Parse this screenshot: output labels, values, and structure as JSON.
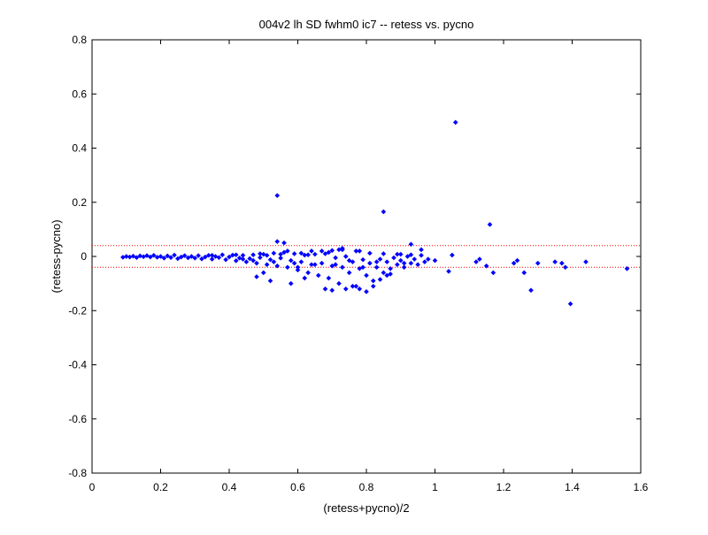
{
  "chart_data": {
    "type": "scatter",
    "title": "004v2 lh SD fwhm0 ic7 -- retess vs. pycno",
    "xlabel": "(retess+pycno)/2",
    "ylabel": "(retess-pycno)",
    "xlim": [
      0,
      1.6
    ],
    "ylim": [
      -0.8,
      0.8
    ],
    "xticks": [
      "0",
      "0.2",
      "0.4",
      "0.6",
      "0.8",
      "1",
      "1.2",
      "1.4",
      "1.6"
    ],
    "yticks": [
      "-0.8",
      "-0.6",
      "-0.4",
      "-0.2",
      "0",
      "0.2",
      "0.4",
      "0.6",
      "0.8"
    ],
    "grid": false,
    "marker_color": "#0000ff",
    "reference_line_color": "#ff0000",
    "reference_lines_y": [
      0.04,
      -0.04
    ],
    "series": [
      {
        "points": [
          [
            0.09,
            -0.003
          ],
          [
            0.1,
            0.0
          ],
          [
            0.11,
            -0.002
          ],
          [
            0.12,
            0.001
          ],
          [
            0.13,
            -0.004
          ],
          [
            0.14,
            0.002
          ],
          [
            0.15,
            -0.001
          ],
          [
            0.16,
            0.003
          ],
          [
            0.17,
            -0.002
          ],
          [
            0.18,
            0.004
          ],
          [
            0.19,
            -0.003
          ],
          [
            0.2,
            0.0
          ],
          [
            0.21,
            -0.006
          ],
          [
            0.22,
            0.002
          ],
          [
            0.23,
            -0.004
          ],
          [
            0.24,
            0.005
          ],
          [
            0.25,
            -0.008
          ],
          [
            0.26,
            -0.002
          ],
          [
            0.27,
            0.003
          ],
          [
            0.28,
            -0.005
          ],
          [
            0.29,
            0.0
          ],
          [
            0.3,
            -0.006
          ],
          [
            0.31,
            0.003
          ],
          [
            0.32,
            -0.009
          ],
          [
            0.33,
            -0.002
          ],
          [
            0.34,
            0.004
          ],
          [
            0.35,
            -0.01
          ],
          [
            0.36,
            0.0
          ],
          [
            0.37,
            -0.004
          ],
          [
            0.38,
            0.006
          ],
          [
            0.39,
            -0.012
          ],
          [
            0.4,
            -0.002
          ],
          [
            0.41,
            0.005
          ],
          [
            0.42,
            -0.016
          ],
          [
            0.43,
            -0.006
          ],
          [
            0.44,
            0.004
          ],
          [
            0.45,
            -0.02
          ],
          [
            0.46,
            -0.008
          ],
          [
            0.47,
            0.006
          ],
          [
            0.48,
            -0.025
          ],
          [
            0.49,
            -0.004
          ],
          [
            0.5,
            0.008
          ],
          [
            0.51,
            -0.03
          ],
          [
            0.52,
            -0.012
          ],
          [
            0.53,
            0.012
          ],
          [
            0.54,
            -0.035
          ],
          [
            0.55,
            -0.006
          ],
          [
            0.56,
            0.015
          ],
          [
            0.57,
            -0.04
          ],
          [
            0.58,
            -0.015
          ],
          [
            0.59,
            0.01
          ],
          [
            0.6,
            -0.05
          ],
          [
            0.61,
            -0.02
          ],
          [
            0.62,
            0.005
          ],
          [
            0.63,
            -0.06
          ],
          [
            0.64,
            -0.03
          ],
          [
            0.65,
            0.008
          ],
          [
            0.66,
            -0.07
          ],
          [
            0.67,
            -0.025
          ],
          [
            0.68,
            0.01
          ],
          [
            0.69,
            -0.08
          ],
          [
            0.7,
            -0.035
          ],
          [
            0.71,
            -0.005
          ],
          [
            0.72,
            -0.1
          ],
          [
            0.73,
            -0.04
          ],
          [
            0.74,
            0.0
          ],
          [
            0.75,
            -0.06
          ],
          [
            0.76,
            -0.02
          ],
          [
            0.77,
            -0.11
          ],
          [
            0.78,
            -0.045
          ],
          [
            0.79,
            -0.012
          ],
          [
            0.8,
            -0.07
          ],
          [
            0.81,
            -0.025
          ],
          [
            0.82,
            -0.09
          ],
          [
            0.83,
            -0.04
          ],
          [
            0.84,
            -0.01
          ],
          [
            0.85,
            -0.06
          ],
          [
            0.86,
            -0.02
          ],
          [
            0.87,
            -0.045
          ],
          [
            0.88,
            -0.005
          ],
          [
            0.89,
            -0.03
          ],
          [
            0.9,
            -0.015
          ],
          [
            0.91,
            -0.04
          ],
          [
            0.92,
            0.0
          ],
          [
            0.93,
            -0.025
          ],
          [
            0.94,
            -0.01
          ],
          [
            0.95,
            -0.03
          ],
          [
            0.96,
            0.004
          ],
          [
            0.97,
            -0.02
          ],
          [
            0.35,
            0.004
          ],
          [
            0.42,
            0.006
          ],
          [
            0.44,
            -0.01
          ],
          [
            0.47,
            -0.015
          ],
          [
            0.49,
            0.01
          ],
          [
            0.51,
            0.004
          ],
          [
            0.53,
            -0.02
          ],
          [
            0.55,
            0.008
          ],
          [
            0.57,
            0.02
          ],
          [
            0.59,
            -0.025
          ],
          [
            0.61,
            0.012
          ],
          [
            0.63,
            0.006
          ],
          [
            0.65,
            -0.03
          ],
          [
            0.67,
            0.02
          ],
          [
            0.69,
            0.015
          ],
          [
            0.71,
            -0.03
          ],
          [
            0.73,
            0.025
          ],
          [
            0.75,
            -0.015
          ],
          [
            0.77,
            0.02
          ],
          [
            0.79,
            -0.04
          ],
          [
            0.81,
            0.012
          ],
          [
            0.83,
            -0.02
          ],
          [
            0.85,
            0.01
          ],
          [
            0.87,
            -0.065
          ],
          [
            0.89,
            0.008
          ],
          [
            0.91,
            -0.025
          ],
          [
            0.93,
            0.006
          ],
          [
            0.54,
            0.225
          ],
          [
            0.54,
            0.055
          ],
          [
            0.56,
            0.05
          ],
          [
            0.58,
            -0.1
          ],
          [
            0.52,
            -0.09
          ],
          [
            0.5,
            -0.06
          ],
          [
            0.48,
            -0.075
          ],
          [
            0.6,
            -0.04
          ],
          [
            0.62,
            -0.08
          ],
          [
            0.64,
            0.02
          ],
          [
            0.68,
            -0.12
          ],
          [
            0.7,
            -0.125
          ],
          [
            0.72,
            0.025
          ],
          [
            0.74,
            -0.12
          ],
          [
            0.76,
            -0.11
          ],
          [
            0.78,
            -0.12
          ],
          [
            0.8,
            -0.13
          ],
          [
            0.82,
            -0.11
          ],
          [
            0.84,
            -0.085
          ],
          [
            0.86,
            -0.07
          ],
          [
            0.7,
            0.022
          ],
          [
            0.73,
            0.03
          ],
          [
            0.78,
            0.02
          ],
          [
            0.9,
            0.008
          ],
          [
            0.93,
            0.045
          ],
          [
            0.96,
            0.025
          ],
          [
            0.98,
            -0.01
          ],
          [
            1.0,
            -0.015
          ],
          [
            0.85,
            0.165
          ],
          [
            1.04,
            -0.055
          ],
          [
            1.05,
            0.005
          ],
          [
            1.06,
            0.495
          ],
          [
            1.12,
            -0.02
          ],
          [
            1.13,
            -0.01
          ],
          [
            1.15,
            -0.035
          ],
          [
            1.16,
            0.118
          ],
          [
            1.17,
            -0.06
          ],
          [
            1.23,
            -0.025
          ],
          [
            1.24,
            -0.015
          ],
          [
            1.26,
            -0.06
          ],
          [
            1.28,
            -0.125
          ],
          [
            1.3,
            -0.025
          ],
          [
            1.35,
            -0.02
          ],
          [
            1.37,
            -0.025
          ],
          [
            1.38,
            -0.04
          ],
          [
            1.395,
            -0.175
          ],
          [
            1.44,
            -0.02
          ],
          [
            1.56,
            -0.045
          ]
        ]
      }
    ]
  }
}
